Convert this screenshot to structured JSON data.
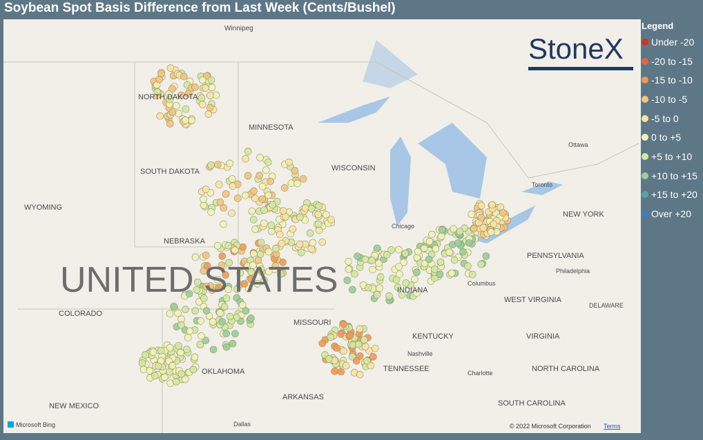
{
  "title": "Soybean Spot Basis Difference from Last Week (Cents/Bushel)",
  "legend": {
    "title": "Legend",
    "items": [
      {
        "label": "Under -20",
        "color": "#d7301f"
      },
      {
        "label": "-20 to -15",
        "color": "#e8643e"
      },
      {
        "label": "-15 to -10",
        "color": "#f19a55"
      },
      {
        "label": "-10 to -5",
        "color": "#f6c47c"
      },
      {
        "label": "-5 to 0",
        "color": "#fbe3a2"
      },
      {
        "label": "0 to +5",
        "color": "#f3f4b6"
      },
      {
        "label": "+5 to +10",
        "color": "#d3e9a0"
      },
      {
        "label": "+10 to +15",
        "color": "#98cf97"
      },
      {
        "label": "+15 to +20",
        "color": "#5c9fa6"
      },
      {
        "label": "Over +20",
        "color": "#3b7fc1"
      }
    ]
  },
  "logo": "StoneX",
  "map_labels": [
    {
      "text": "Winnipeg"
    },
    {
      "text": "NORTH DAKOTA"
    },
    {
      "text": "MINNESOTA"
    },
    {
      "text": "SOUTH DAKOTA"
    },
    {
      "text": "WYOMING"
    },
    {
      "text": "NEBRASKA"
    },
    {
      "text": "UNITED STATES"
    },
    {
      "text": "COLORADO"
    },
    {
      "text": "MISSOURI"
    },
    {
      "text": "KENTUCKY"
    },
    {
      "text": "TENNESSEE"
    },
    {
      "text": "Nashville"
    },
    {
      "text": "OKLAHOMA"
    },
    {
      "text": "ARKANSAS"
    },
    {
      "text": "NEW MEXICO"
    },
    {
      "text": "Dallas"
    },
    {
      "text": "WISCONSIN"
    },
    {
      "text": "Chicago"
    },
    {
      "text": "INDIANA"
    },
    {
      "text": "Columbus"
    },
    {
      "text": "WEST VIRGINIA"
    },
    {
      "text": "VIRGINIA"
    },
    {
      "text": "NORTH CAROLINA"
    },
    {
      "text": "SOUTH CAROLINA"
    },
    {
      "text": "Charlotte"
    },
    {
      "text": "PENNSYLVANIA"
    },
    {
      "text": "Philadelphia"
    },
    {
      "text": "NEW YORK"
    },
    {
      "text": "Toronto"
    },
    {
      "text": "Ottawa"
    },
    {
      "text": "DELAWARE"
    }
  ],
  "attribution": {
    "provider": "Microsoft Bing",
    "copyright": "© 2022 Microsoft Corporation",
    "terms": "Terms"
  }
}
